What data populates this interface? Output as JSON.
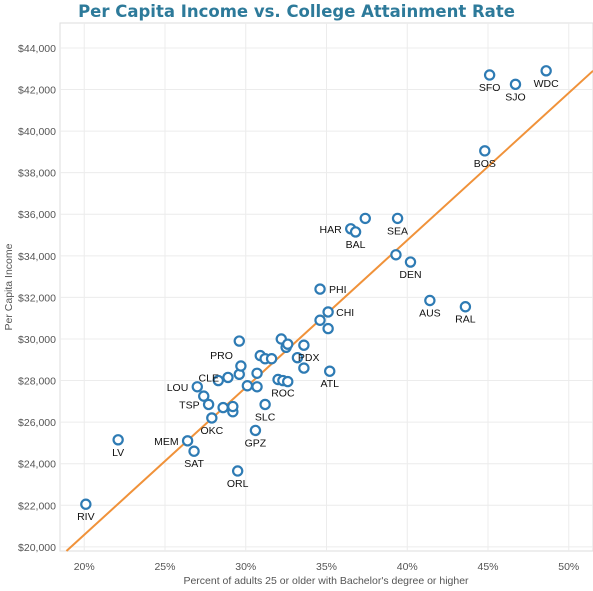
{
  "chart_data": {
    "type": "scatter",
    "title": "Per Capita Income vs. College Attainment Rate",
    "xlabel": "Percent of adults 25 or older with Bachelor's degree or higher",
    "ylabel": "Per Capita Income",
    "xlim": [
      18.5,
      51.5
    ],
    "ylim": [
      19800,
      45200
    ],
    "x_ticks": [
      20,
      25,
      30,
      35,
      40,
      45,
      50
    ],
    "x_tick_labels": [
      "20%",
      "25%",
      "30%",
      "35%",
      "40%",
      "45%",
      "50%"
    ],
    "y_ticks": [
      20000,
      22000,
      24000,
      26000,
      28000,
      30000,
      32000,
      34000,
      36000,
      38000,
      40000,
      42000,
      44000
    ],
    "y_tick_labels": [
      "$20,000",
      "$22,000",
      "$24,000",
      "$26,000",
      "$28,000",
      "$30,000",
      "$32,000",
      "$34,000",
      "$36,000",
      "$38,000",
      "$40,000",
      "$42,000",
      "$44,000"
    ],
    "grid": true,
    "marker_color": "#2e7bb4",
    "trend_color": "#f0923a",
    "trend_line": {
      "x": [
        18.9,
        51.5
      ],
      "y": [
        19800,
        42900
      ]
    },
    "points": [
      {
        "x": 20.1,
        "y": 22050,
        "label": "RIV"
      },
      {
        "x": 22.1,
        "y": 25150,
        "label": "LV"
      },
      {
        "x": 26.4,
        "y": 25100,
        "label": "MEM"
      },
      {
        "x": 26.8,
        "y": 24600,
        "label": "SAT"
      },
      {
        "x": 27.0,
        "y": 27700,
        "label": "LOU"
      },
      {
        "x": 27.4,
        "y": 27250,
        "label": ""
      },
      {
        "x": 27.7,
        "y": 26850,
        "label": "TSP"
      },
      {
        "x": 27.9,
        "y": 26200,
        "label": "OKC"
      },
      {
        "x": 28.3,
        "y": 28000,
        "label": ""
      },
      {
        "x": 28.6,
        "y": 26700,
        "label": ""
      },
      {
        "x": 28.9,
        "y": 28150,
        "label": "CLE"
      },
      {
        "x": 29.2,
        "y": 26500,
        "label": ""
      },
      {
        "x": 29.2,
        "y": 26750,
        "label": ""
      },
      {
        "x": 29.5,
        "y": 23650,
        "label": "ORL"
      },
      {
        "x": 29.6,
        "y": 28300,
        "label": ""
      },
      {
        "x": 29.6,
        "y": 29900,
        "label": ""
      },
      {
        "x": 29.7,
        "y": 28700,
        "label": "PRO"
      },
      {
        "x": 30.1,
        "y": 27750,
        "label": ""
      },
      {
        "x": 30.6,
        "y": 25600,
        "label": "GPZ"
      },
      {
        "x": 30.7,
        "y": 28350,
        "label": ""
      },
      {
        "x": 30.7,
        "y": 27700,
        "label": ""
      },
      {
        "x": 30.9,
        "y": 29200,
        "label": ""
      },
      {
        "x": 31.2,
        "y": 26850,
        "label": "SLC"
      },
      {
        "x": 31.2,
        "y": 29050,
        "label": ""
      },
      {
        "x": 31.6,
        "y": 29050,
        "label": ""
      },
      {
        "x": 32.0,
        "y": 28050,
        "label": ""
      },
      {
        "x": 32.2,
        "y": 30000,
        "label": ""
      },
      {
        "x": 32.3,
        "y": 28000,
        "label": "ROC"
      },
      {
        "x": 32.5,
        "y": 29600,
        "label": ""
      },
      {
        "x": 32.6,
        "y": 29750,
        "label": ""
      },
      {
        "x": 32.6,
        "y": 27950,
        "label": ""
      },
      {
        "x": 33.2,
        "y": 29100,
        "label": ""
      },
      {
        "x": 33.6,
        "y": 28600,
        "label": ""
      },
      {
        "x": 33.6,
        "y": 29700,
        "label": "PDX"
      },
      {
        "x": 34.6,
        "y": 32400,
        "label": "PHI"
      },
      {
        "x": 34.6,
        "y": 30900,
        "label": ""
      },
      {
        "x": 35.1,
        "y": 31300,
        "label": "CHI"
      },
      {
        "x": 35.1,
        "y": 30500,
        "label": ""
      },
      {
        "x": 35.2,
        "y": 28450,
        "label": "ATL"
      },
      {
        "x": 36.5,
        "y": 35300,
        "label": "HAR"
      },
      {
        "x": 36.8,
        "y": 35150,
        "label": "BAL"
      },
      {
        "x": 37.4,
        "y": 35800,
        "label": ""
      },
      {
        "x": 39.3,
        "y": 34050,
        "label": ""
      },
      {
        "x": 39.4,
        "y": 35800,
        "label": "SEA"
      },
      {
        "x": 40.2,
        "y": 33700,
        "label": "DEN"
      },
      {
        "x": 41.4,
        "y": 31850,
        "label": "AUS"
      },
      {
        "x": 43.6,
        "y": 31550,
        "label": "RAL"
      },
      {
        "x": 44.8,
        "y": 39050,
        "label": "BOS"
      },
      {
        "x": 45.1,
        "y": 42700,
        "label": "SFO"
      },
      {
        "x": 46.7,
        "y": 42250,
        "label": "SJO"
      },
      {
        "x": 48.6,
        "y": 42900,
        "label": "WDC"
      }
    ]
  }
}
